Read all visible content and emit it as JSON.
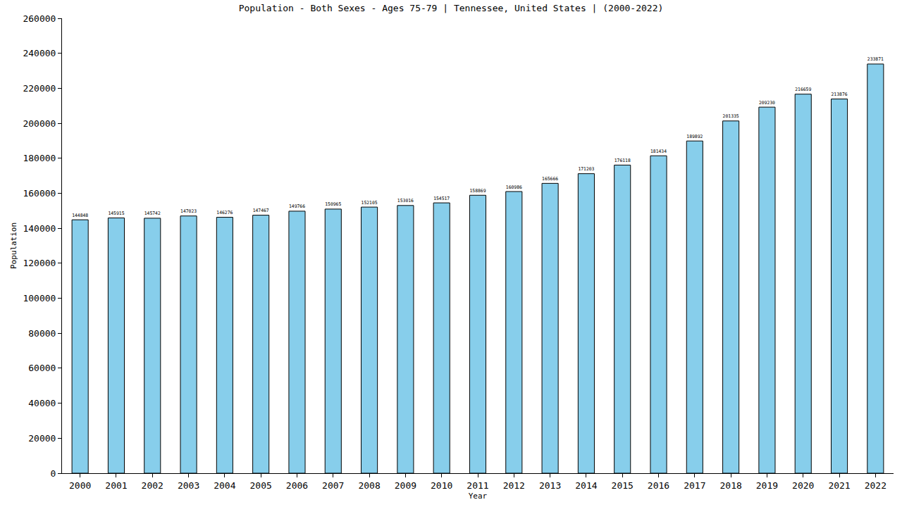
{
  "chart_data": {
    "type": "bar",
    "title": "Population - Both Sexes - Ages 75-79 | Tennessee, United States | (2000-2022)",
    "x_label": "Year",
    "y_label": "Population",
    "categories": [
      "2000",
      "2001",
      "2002",
      "2003",
      "2004",
      "2005",
      "2006",
      "2007",
      "2008",
      "2009",
      "2010",
      "2011",
      "2012",
      "2013",
      "2014",
      "2015",
      "2016",
      "2017",
      "2018",
      "2019",
      "2020",
      "2021",
      "2022"
    ],
    "values": [
      144848,
      145915,
      145742,
      147023,
      146276,
      147467,
      149766,
      150965,
      152105,
      153016,
      154517,
      158869,
      160986,
      165666,
      171203,
      176118,
      181434,
      189892,
      201335,
      209230,
      216659,
      213876,
      233871
    ],
    "color": "#87ceeb",
    "ylim": [
      0,
      260000
    ],
    "yticks": [
      0,
      20000,
      40000,
      60000,
      80000,
      100000,
      120000,
      140000,
      160000,
      180000,
      200000,
      220000,
      240000,
      260000
    ],
    "grid": false,
    "data_labels": true
  }
}
